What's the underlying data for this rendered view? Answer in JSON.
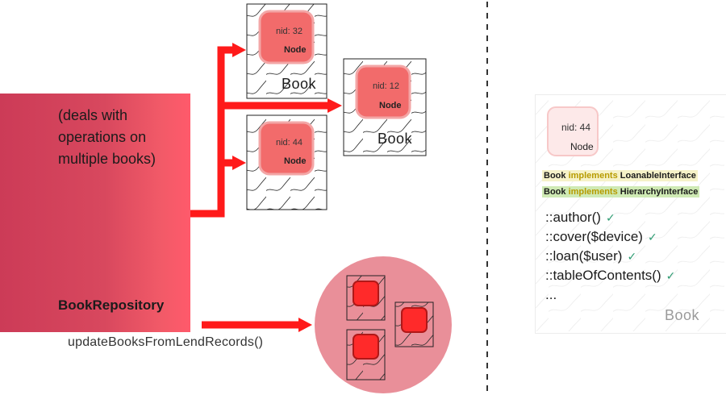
{
  "repository": {
    "description": [
      "(deals with",
      "operations on",
      "multiple books)"
    ],
    "name": "BookRepository",
    "method": "updateBooksFromLendRecords()"
  },
  "books": [
    {
      "nid": "nid: 32",
      "node": "Node",
      "title": "Book"
    },
    {
      "nid": "nid: 12",
      "node": "Node",
      "title": "Book"
    },
    {
      "nid": "nid: 44",
      "node": "Node",
      "title": ""
    }
  ],
  "detail": {
    "nid": "nid: 44",
    "node": "Node",
    "implements": [
      {
        "subject": "Book",
        "keyword": "implements",
        "interface": "LoanableInterface"
      },
      {
        "subject": "Book",
        "keyword": "implements",
        "interface": "HierarchyInterface"
      }
    ],
    "methods": [
      "::author()",
      "::cover($device)",
      "::loan($user)",
      "::tableOfContents()"
    ],
    "ellipsis": "...",
    "title": "Book"
  },
  "colors": {
    "arrow": "#ff1a1a",
    "node_fill": "#f26b6b",
    "node_stroke": "#f3a6a6",
    "group_circle": "#e98f99",
    "check": "#2e9b72"
  }
}
